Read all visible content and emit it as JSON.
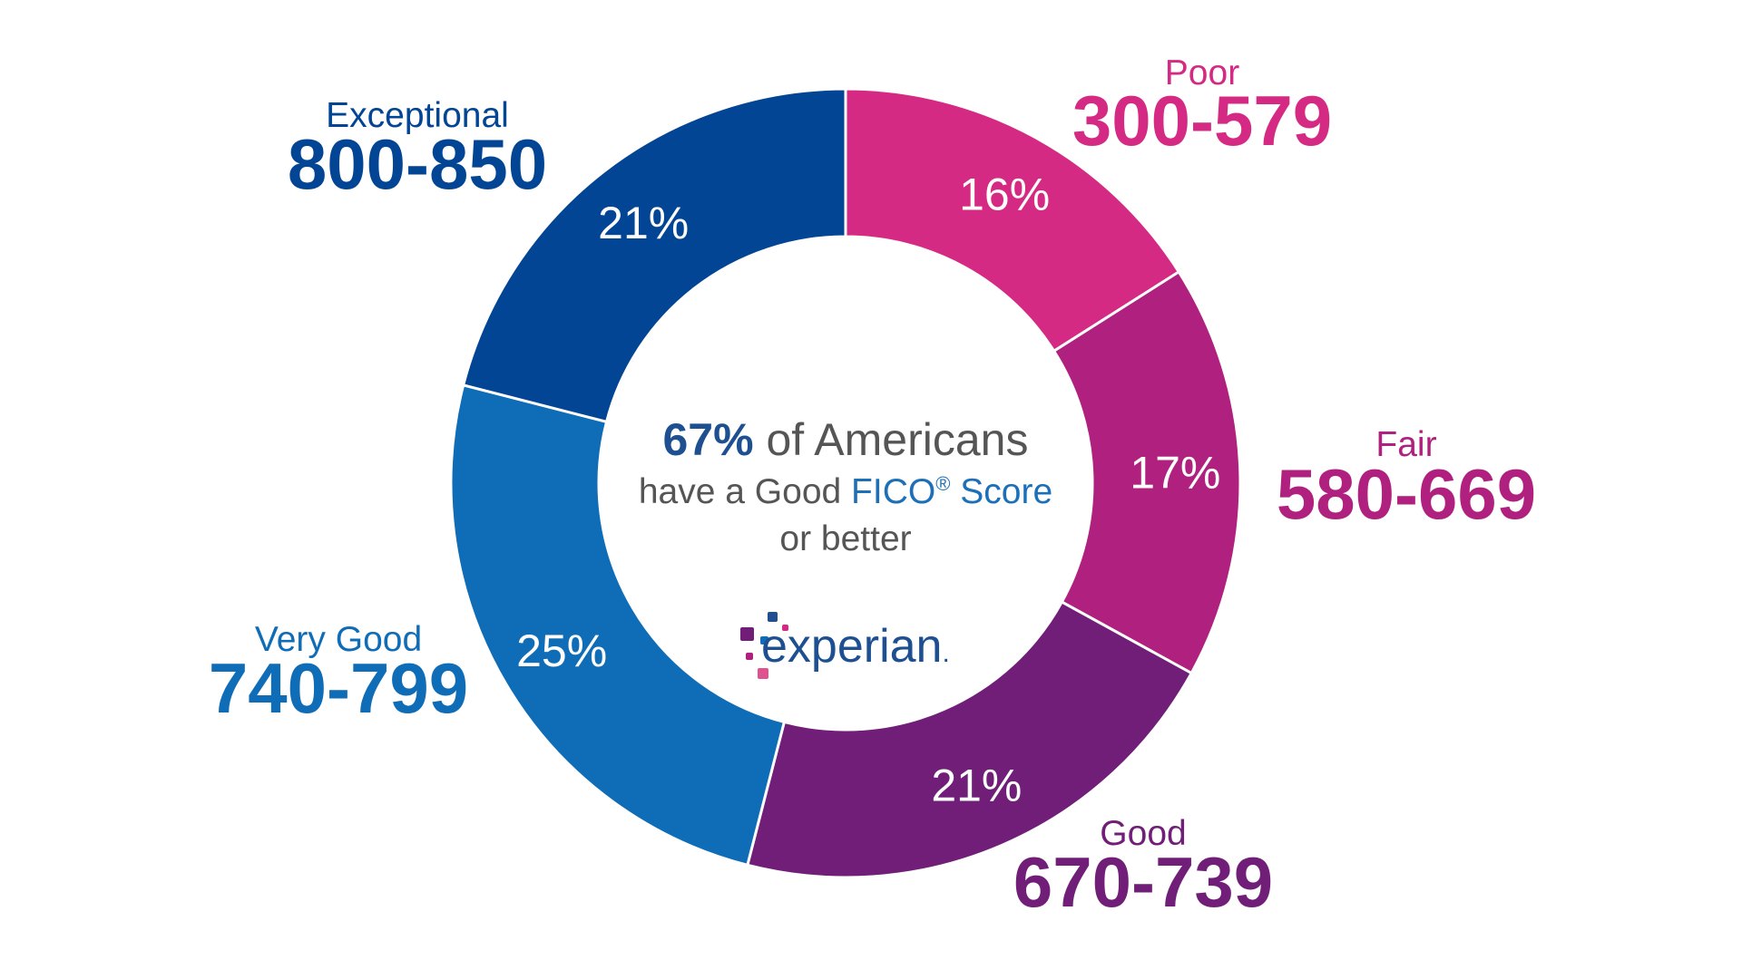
{
  "chart_data": {
    "type": "pie",
    "variant": "donut",
    "unit": "%",
    "categories": [
      "Poor",
      "Fair",
      "Good",
      "Very Good",
      "Exceptional"
    ],
    "ranges": [
      "300-579",
      "580-669",
      "670-739",
      "740-799",
      "800-850"
    ],
    "values": [
      16,
      17,
      21,
      25,
      21
    ],
    "labels": [
      "16%",
      "17%",
      "21%",
      "25%",
      "21%"
    ],
    "colors": [
      "#d52a83",
      "#b0207f",
      "#701e78",
      "#0f6cb7",
      "#014594"
    ]
  },
  "center": {
    "headline_pct": "67%",
    "headline_text": " of Americans",
    "line2_prefix": "have a Good ",
    "line2_brand": "FICO",
    "line2_reg": "®",
    "line2_suffix": " Score",
    "line3": "or better"
  },
  "logo": {
    "text": "experian",
    "dot": ".",
    "colors": {
      "text": "#1d4f91",
      "squares": [
        "#1d4f91",
        "#d52a83",
        "#701e78",
        "#0f6cb7",
        "#b0207f",
        "#e0518f"
      ]
    }
  },
  "colors": {
    "good_blue": "#1d4f91",
    "gray_text": "#555555",
    "fico_blue": "#1d70b8"
  }
}
